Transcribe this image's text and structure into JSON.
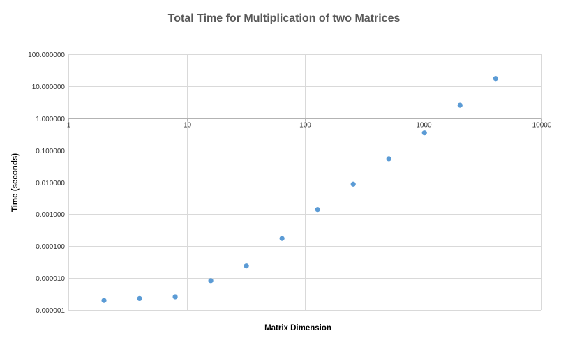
{
  "chart_data": {
    "type": "scatter",
    "title": "Total Time for Multiplication of two Matrices",
    "xlabel": "Matrix Dimension",
    "ylabel": "Time (seconds)",
    "xscale": "log",
    "yscale": "log",
    "xlim": [
      1,
      10000
    ],
    "ylim": [
      1e-06,
      100
    ],
    "x_crosses_y_at": 1,
    "grid": true,
    "legend": "none",
    "x_ticks": [
      1,
      10,
      100,
      1000,
      10000
    ],
    "x_tick_labels": [
      "1",
      "10",
      "100",
      "1000",
      "10000"
    ],
    "y_ticks": [
      100,
      10,
      1,
      0.1,
      0.01,
      0.001,
      0.0001,
      1e-05,
      1e-06
    ],
    "y_tick_labels": [
      "100.000000",
      "10.000000",
      "1.000000",
      "0.100000",
      "0.010000",
      "0.001000",
      "0.000100",
      "0.000010",
      "0.000001"
    ],
    "series": [
      {
        "color": "#5b9bd5",
        "x": [
          2,
          4,
          8,
          16,
          32,
          64,
          128,
          256,
          512,
          1024,
          2048,
          4096
        ],
        "y": [
          2e-06,
          2.3e-06,
          2.6e-06,
          8.3e-06,
          2.4e-05,
          0.000175,
          0.0014,
          0.0087,
          0.054,
          0.35,
          2.55,
          17.5
        ]
      }
    ]
  }
}
